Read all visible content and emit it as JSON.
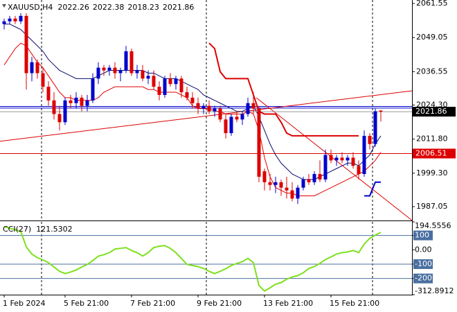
{
  "chart_data": [
    {
      "type": "candlestick",
      "title": "XAUUSD,H4",
      "categories": [
        "1 Feb 2024",
        null,
        null,
        null,
        null,
        null,
        null,
        null,
        null,
        null,
        null,
        "5 Feb 21:00",
        null,
        null,
        null,
        null,
        null,
        null,
        null,
        null,
        null,
        null,
        null,
        "7 Feb 21:00",
        null,
        null,
        null,
        null,
        null,
        null,
        null,
        null,
        null,
        null,
        null,
        "9 Feb 21:00",
        null,
        null,
        null,
        null,
        null,
        null,
        null,
        null,
        null,
        null,
        null,
        "13 Feb 21:00",
        null,
        null,
        null,
        null,
        null,
        null,
        null,
        null,
        null,
        null,
        null,
        "15 Feb 21:00",
        null,
        null,
        null,
        null,
        null,
        null,
        null,
        null,
        null
      ],
      "open": [
        2054,
        2055,
        2056,
        2055,
        2057,
        2036,
        2040,
        2036,
        2031,
        2026,
        2021,
        2018,
        2026,
        2025,
        2027,
        2024,
        2026,
        2034,
        2038,
        2037,
        2038,
        2036,
        2037,
        2044,
        2036,
        2037,
        2034,
        2035,
        2031,
        2028,
        2034,
        2032,
        2034,
        2029,
        2027,
        2025,
        2023,
        2024,
        2022,
        2023,
        2019,
        2014,
        2020,
        2019,
        2021,
        2025,
        2023,
        2000,
        1996,
        1995,
        1996,
        1994,
        1993,
        1990,
        1994,
        1997,
        1996,
        1999,
        1997,
        2006,
        2004,
        2005,
        2004,
        2005,
        2002,
        1999,
        2013,
        2010,
        2022.26
      ],
      "high": [
        2056,
        2057,
        2057,
        2058,
        2058,
        2042,
        2041,
        2038,
        2033,
        2029,
        2024,
        2027,
        2028,
        2029,
        2028,
        2028,
        2036,
        2040,
        2039,
        2039,
        2040,
        2038,
        2046,
        2045,
        2039,
        2039,
        2037,
        2037,
        2033,
        2035,
        2036,
        2035,
        2035,
        2031,
        2029,
        2027,
        2025,
        2026,
        2024,
        2024,
        2021,
        2021,
        2022,
        2022,
        2027,
        2029,
        2024,
        2001,
        1999,
        1998,
        1997,
        1998,
        1996,
        1995,
        1998,
        1999,
        2000,
        2004,
        2008,
        2008,
        2006,
        2007,
        2006,
        2007,
        2004,
        2015,
        2014,
        2023,
        2022.38
      ],
      "low": [
        2052,
        2054,
        2054,
        2054,
        2030,
        2033,
        2034,
        2029,
        2024,
        2019,
        2015,
        2017,
        2023,
        2023,
        2022,
        2022,
        2025,
        2032,
        2035,
        2035,
        2034,
        2033,
        2036,
        2035,
        2034,
        2033,
        2032,
        2030,
        2026,
        2027,
        2031,
        2030,
        2027,
        2026,
        2023,
        2021,
        2021,
        2021,
        2020,
        2018,
        2012,
        2013,
        2018,
        2017,
        2020,
        2021,
        1996,
        1993,
        1993,
        1992,
        1991,
        1990,
        1989,
        1988,
        1993,
        1995,
        1995,
        1996,
        1996,
        2003,
        2002,
        2003,
        2002,
        2001,
        1997,
        1998,
        2008,
        2009,
        2018.23
      ],
      "close": [
        2055,
        2056,
        2055,
        2057,
        2036,
        2040,
        2036,
        2031,
        2026,
        2021,
        2018,
        2026,
        2025,
        2027,
        2024,
        2026,
        2034,
        2038,
        2037,
        2038,
        2036,
        2037,
        2044,
        2036,
        2037,
        2034,
        2035,
        2031,
        2028,
        2034,
        2032,
        2034,
        2029,
        2027,
        2025,
        2023,
        2024,
        2022,
        2023,
        2019,
        2014,
        2020,
        2019,
        2021,
        2025,
        2023,
        1998,
        1996,
        1995,
        1996,
        1994,
        1993,
        1990,
        1994,
        1997,
        1996,
        1999,
        1997,
        2006,
        2004,
        2005,
        2004,
        2005,
        2002,
        1999,
        2013,
        2010,
        2022,
        2021.86
      ],
      "up_color": "#0000cc",
      "down_color": "#dd0000",
      "xlim": [
        -0.75,
        73.625
      ],
      "ylim": [
        1981.96,
        2062.82
      ],
      "yticks": [
        2061.55,
        2049.05,
        2036.55,
        {
          "value": 2024.3,
          "label": "2024.30"
        },
        {
          "value": 2011.8,
          "label": "2011.80"
        },
        {
          "value": 1999.3,
          "label": "1999.30"
        },
        1987.05
      ],
      "lines": [
        {
          "color": "#0a0a6e",
          "width": 1,
          "values": [
            2054,
            2054,
            2053,
            2052,
            2050,
            2048,
            2046,
            2044,
            2041,
            2039,
            2037,
            2036,
            2035,
            2034,
            2034,
            2034,
            2034,
            2035,
            2036,
            2037,
            2037,
            2037,
            2037,
            2037,
            2037,
            2037,
            2036,
            2036,
            2035,
            2034,
            2034,
            2034,
            2033,
            2032,
            2031,
            2030,
            2028,
            2027,
            2026,
            2025,
            2024,
            2023,
            2022,
            2022,
            2023,
            2024,
            2020,
            2015,
            2010,
            2006,
            2003,
            2001,
            1999,
            1998,
            1997,
            1997,
            1997,
            1998,
            1999,
            2000,
            2001,
            2002,
            2003,
            2003,
            2002,
            2004,
            2006,
            2010,
            2013
          ]
        },
        {
          "color": "#dd0000",
          "width": 1,
          "values": [
            2039,
            2042,
            2045,
            2047,
            2046,
            2043,
            2040,
            2038,
            2035,
            2032,
            2029,
            2027,
            2027,
            2026,
            2026,
            2026,
            2026,
            2027,
            2029,
            2030,
            2031,
            2031,
            2031,
            2031,
            2031,
            2031,
            2030,
            2030,
            2029,
            2029,
            2029,
            2029,
            2028,
            2027,
            2024,
            2023,
            2023,
            2023,
            2022,
            2022,
            2021,
            2021,
            2021,
            2021,
            2022,
            2021,
            2015,
            2005,
            1998,
            1994,
            1993,
            1992,
            1992,
            1991,
            1991,
            1991,
            1991,
            1992,
            1993,
            1994,
            1995,
            1996,
            1997,
            1998,
            1999,
            2000,
            2002,
            2004,
            2007
          ]
        },
        {
          "color": "#dd0000",
          "width": 2,
          "values": [
            null,
            null,
            null,
            null,
            null,
            null,
            null,
            null,
            null,
            null,
            null,
            null,
            null,
            null,
            null,
            null,
            null,
            null,
            null,
            null,
            null,
            null,
            null,
            null,
            null,
            null,
            null,
            null,
            null,
            null,
            null,
            null,
            null,
            null,
            null,
            null,
            null,
            2047,
            2045,
            2036.5,
            2034,
            2034,
            2034,
            2034,
            2034,
            2028,
            2022,
            2021,
            2021,
            2021,
            2018,
            2014,
            2013,
            2013,
            2013,
            2013,
            2013,
            2013,
            2013,
            2013,
            2013,
            2013,
            2013,
            2013,
            2013,
            null,
            null,
            null,
            null
          ]
        },
        {
          "color": "#0000cc",
          "width": 2,
          "values": [
            null,
            null,
            null,
            null,
            null,
            null,
            null,
            null,
            null,
            null,
            null,
            null,
            null,
            null,
            null,
            null,
            null,
            null,
            null,
            null,
            null,
            null,
            null,
            null,
            null,
            null,
            null,
            null,
            null,
            null,
            null,
            null,
            null,
            null,
            null,
            null,
            null,
            null,
            null,
            null,
            null,
            null,
            null,
            null,
            null,
            null,
            null,
            null,
            null,
            null,
            null,
            null,
            null,
            null,
            null,
            null,
            null,
            null,
            null,
            null,
            null,
            null,
            null,
            null,
            null,
            1991,
            1991,
            1996,
            1996
          ]
        }
      ],
      "trendlines": [
        {
          "color": "#dd0000",
          "x": [
            -0.75,
            73.625
          ],
          "values": [
            2011,
            2029.5
          ]
        },
        {
          "color": "#dd0000",
          "x": [
            45.5,
            73.625
          ],
          "values": [
            2027,
            1982
          ]
        }
      ],
      "hlines": [
        {
          "value": 2023.8,
          "color": "#0000cc"
        },
        {
          "value": 2023.2,
          "color": "#0000cc"
        },
        {
          "value": 2006.51,
          "color": "#dd0000",
          "tag": true
        }
      ],
      "last_price_color": "#000000"
    },
    {
      "type": "line",
      "title": "CCI(27)",
      "color": "#7ee01e",
      "values": [
        161,
        150,
        140,
        127,
        20,
        -30,
        -55,
        -70,
        -90,
        -120,
        -150,
        -166,
        -155,
        -141,
        -120,
        -102,
        -75,
        -44,
        -34,
        -20,
        5,
        10,
        15,
        -5,
        -20,
        -44,
        -20,
        15,
        25,
        29,
        10,
        -20,
        -60,
        -102,
        -110,
        -117,
        -130,
        -150,
        -166,
        -150,
        -132,
        -110,
        -95,
        -83,
        -60,
        -90,
        -249,
        -288,
        -265,
        -240,
        -229,
        -205,
        -190,
        -180,
        -160,
        -130,
        -117,
        -95,
        -68,
        -50,
        -30,
        -20,
        -15,
        -5,
        -20,
        40,
        80,
        102,
        121.5302
      ],
      "ylim": [
        -312.8912,
        194.5556
      ],
      "yticks": [
        194.5556,
        100,
        {
          "value": 0,
          "label": "0.00"
        },
        -100,
        -200,
        -312.8912
      ],
      "levels": [
        100,
        -100,
        -200
      ],
      "level_color": "#4a6fa0"
    }
  ]
}
